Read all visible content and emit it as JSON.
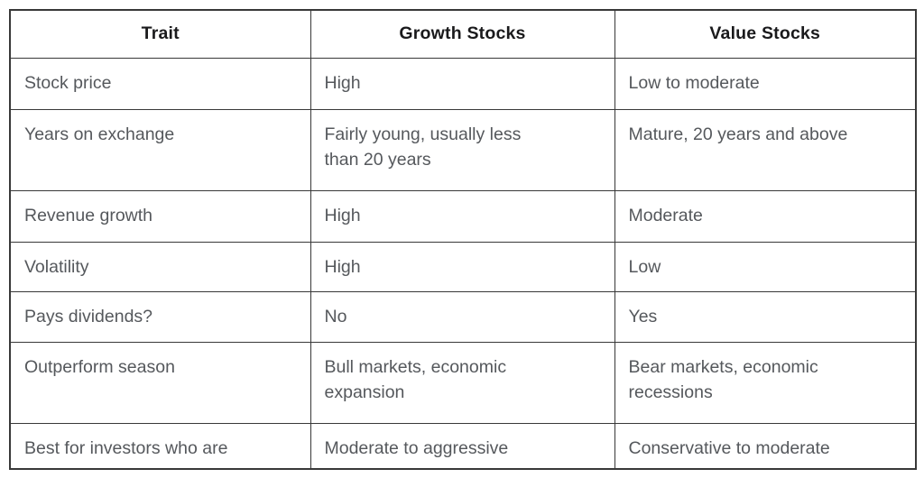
{
  "colors": {
    "border": "#383838",
    "header_text": "#1a1a1c",
    "body_text": "#55585c",
    "background": "#ffffff"
  },
  "chart_data": {
    "type": "table",
    "columns": [
      "Trait",
      "Growth Stocks",
      "Value Stocks"
    ],
    "rows": [
      [
        "Stock price",
        "High",
        "Low to moderate"
      ],
      [
        "Years on exchange",
        "Fairly young, usually less\nthan 20 years",
        "Mature, 20 years and above"
      ],
      [
        "Revenue growth",
        "High",
        "Moderate"
      ],
      [
        "Volatility",
        "High",
        "Low"
      ],
      [
        "Pays dividends?",
        "No",
        "Yes"
      ],
      [
        "Outperform season",
        "Bull markets, economic\nexpansion",
        "Bear markets, economic\nrecessions"
      ],
      [
        "Best for investors who are",
        "Moderate to aggressive",
        "Conservative to moderate"
      ]
    ]
  }
}
